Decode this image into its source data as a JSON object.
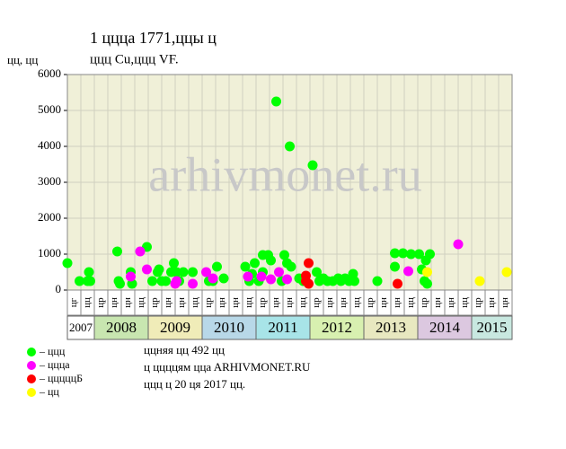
{
  "chart_data": {
    "type": "scatter",
    "title": "1 ццца 1771,ццы ц",
    "subtitle": "ццц Cu,ццц VF.",
    "y_label": "цц, цц",
    "watermark": "arhivmonet.ru",
    "ylim": [
      0,
      6000
    ],
    "yticks": [
      0,
      1000,
      2000,
      3000,
      4000,
      5000,
      6000
    ],
    "xlim": [
      0,
      33
    ],
    "grid": true,
    "plot_background": "#f0f0d8",
    "year_groups": [
      {
        "label": "2007",
        "color": "#ffffff",
        "columns": [
          "цг",
          "цц"
        ]
      },
      {
        "label": "2008",
        "color": "#c8e6b0",
        "columns": [
          "цр",
          "цн",
          "цн",
          "цц"
        ]
      },
      {
        "label": "2009",
        "color": "#f0ecb8",
        "columns": [
          "цр",
          "цн",
          "цн",
          "цц"
        ]
      },
      {
        "label": "2010",
        "color": "#b8d8e8",
        "columns": [
          "цр",
          "цн",
          "цн",
          "цц"
        ]
      },
      {
        "label": "2011",
        "color": "#a8e4e8",
        "columns": [
          "цр",
          "цн",
          "цн",
          "цц"
        ]
      },
      {
        "label": "2012",
        "color": "#d8f0b0",
        "columns": [
          "цр",
          "цн",
          "цн",
          "цц"
        ]
      },
      {
        "label": "2013",
        "color": "#e8e8c0",
        "columns": [
          "цр",
          "цн",
          "цн",
          "цц"
        ]
      },
      {
        "label": "2014",
        "color": "#dcc8e0",
        "columns": [
          "цр",
          "цн",
          "цн",
          "цц"
        ]
      },
      {
        "label": "2015",
        "color": "#c8e8e0",
        "columns": [
          "цр",
          "цн",
          "цн"
        ]
      }
    ],
    "series": [
      {
        "name": "– ццц",
        "color": "#00ff00",
        "x": [
          0,
          0.9,
          1.5,
          1.6,
          1.7,
          3.7,
          3.8,
          3.9,
          4.7,
          4.8,
          5.9,
          6.3,
          6.7,
          6.8,
          7,
          7.3,
          7.7,
          7.9,
          8.1,
          8.3,
          8.6,
          9.3,
          10.5,
          10.8,
          11.1,
          11.6,
          13.2,
          13.5,
          13.7,
          13.9,
          14.2,
          14.5,
          14.5,
          14.9,
          15.1,
          15.5,
          15.9,
          16.1,
          16.3,
          16.5,
          16.6,
          17.2,
          17.5,
          18.2,
          18.5,
          18.7,
          19,
          19.3,
          19.7,
          20.1,
          20.3,
          20.6,
          20.9,
          21.2,
          21.3,
          23,
          24.3,
          24.3,
          24.9,
          25.5,
          26.1,
          26.3,
          26.5,
          26.7,
          26.6,
          26.9
        ],
        "values": [
          750,
          250,
          250,
          500,
          250,
          1075,
          250,
          175,
          500,
          175,
          1200,
          250,
          500,
          575,
          250,
          250,
          500,
          750,
          500,
          250,
          500,
          500,
          250,
          250,
          650,
          325,
          650,
          250,
          450,
          750,
          250,
          975,
          500,
          975,
          825,
          5250,
          250,
          975,
          750,
          4000,
          650,
          325,
          250,
          3475,
          500,
          250,
          325,
          250,
          250,
          325,
          250,
          325,
          250,
          450,
          250,
          250,
          1025,
          650,
          1025,
          1000,
          1000,
          575,
          250,
          175,
          825,
          1000
        ]
      },
      {
        "name": "– цццa",
        "color": "#ff00ff",
        "x": [
          5.4,
          5.9,
          4.7,
          8,
          8.1,
          9.3,
          10.3,
          10.8,
          13.4,
          14.4,
          15.1,
          15.7,
          16.3,
          25.3,
          29
        ],
        "values": [
          1075,
          575,
          375,
          175,
          250,
          175,
          500,
          325,
          375,
          375,
          300,
          500,
          300,
          525,
          1275
        ]
      },
      {
        "name": "– цццццБ",
        "color": "#ff0000",
        "x": [
          17.7,
          17.7,
          17.9,
          17.9,
          24.5
        ],
        "values": [
          250,
          400,
          175,
          750,
          175
        ]
      },
      {
        "name": "– цц",
        "color": "#ffff00",
        "x": [
          26.7,
          30.6,
          32.6
        ],
        "values": [
          500,
          250,
          500
        ]
      }
    ],
    "notes": [
      "ццняя цц 492 цц",
      "ц ццццям ццa ARHIVMONET.RU",
      "ццц ц 20 ця 2017 цц."
    ]
  }
}
